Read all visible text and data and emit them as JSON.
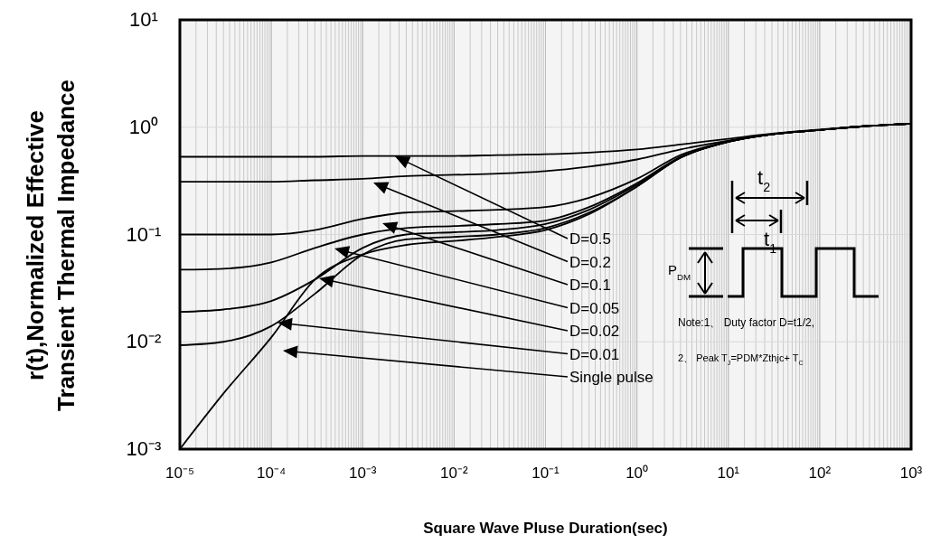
{
  "chart_data": {
    "type": "line",
    "xlabel": "Square Wave Pluse Duration(sec)",
    "ylabel": "r(t),Normalized Effective Transient Thermal Impedance",
    "log": "xy",
    "grid": true,
    "xlim": [
      1e-05,
      1000
    ],
    "ylim": [
      0.001,
      10
    ],
    "xticks": [
      {
        "value": 1e-05,
        "label": "10⁻⁵"
      },
      {
        "value": 0.0001,
        "label": "10⁻⁴"
      },
      {
        "value": 0.001,
        "label": "10⁻³"
      },
      {
        "value": 0.01,
        "label": "10⁻²"
      },
      {
        "value": 0.1,
        "label": "10⁻¹"
      },
      {
        "value": 1,
        "label": "10⁰"
      },
      {
        "value": 10,
        "label": "10¹"
      },
      {
        "value": 100,
        "label": "10²"
      },
      {
        "value": 1000,
        "label": "10³"
      }
    ],
    "yticks": [
      {
        "value": 0.001,
        "label": "10⁻³"
      },
      {
        "value": 0.01,
        "label": "10⁻²"
      },
      {
        "value": 0.1,
        "label": "10⁻¹"
      },
      {
        "value": 1,
        "label": "10⁰"
      },
      {
        "value": 10,
        "label": "10¹"
      }
    ],
    "x": [
      1e-05,
      3e-05,
      0.0001,
      0.0003,
      0.001,
      0.003,
      0.01,
      0.03,
      0.1,
      0.3,
      1,
      3,
      10,
      30,
      100,
      300,
      1000
    ],
    "series": [
      {
        "color": "#000000",
        "values": [
          0.53,
          0.53,
          0.53,
          0.53,
          0.54,
          0.54,
          0.54,
          0.55,
          0.56,
          0.58,
          0.62,
          0.69,
          0.78,
          0.87,
          0.95,
          1.02,
          1.08
        ]
      },
      {
        "color": "#000000",
        "values": [
          0.31,
          0.31,
          0.31,
          0.32,
          0.33,
          0.35,
          0.36,
          0.37,
          0.39,
          0.43,
          0.5,
          0.62,
          0.75,
          0.86,
          0.94,
          1.02,
          1.08
        ]
      },
      {
        "color": "#000000",
        "values": [
          0.1,
          0.1,
          0.1,
          0.11,
          0.14,
          0.16,
          0.165,
          0.17,
          0.18,
          0.22,
          0.33,
          0.55,
          0.74,
          0.86,
          0.94,
          1.02,
          1.08
        ]
      },
      {
        "color": "#000000",
        "values": [
          0.047,
          0.048,
          0.055,
          0.075,
          0.1,
          0.115,
          0.12,
          0.125,
          0.135,
          0.18,
          0.3,
          0.53,
          0.73,
          0.86,
          0.94,
          1.02,
          1.08
        ]
      },
      {
        "color": "#000000",
        "values": [
          0.019,
          0.02,
          0.024,
          0.038,
          0.075,
          0.1,
          0.105,
          0.11,
          0.125,
          0.17,
          0.29,
          0.52,
          0.73,
          0.86,
          0.94,
          1.02,
          1.08
        ]
      },
      {
        "color": "#000000",
        "values": [
          0.0093,
          0.01,
          0.014,
          0.028,
          0.065,
          0.09,
          0.095,
          0.1,
          0.115,
          0.16,
          0.28,
          0.52,
          0.73,
          0.86,
          0.94,
          1.02,
          1.08
        ]
      },
      {
        "color": "#000000",
        "values": [
          0.001,
          0.0033,
          0.011,
          0.038,
          0.065,
          0.08,
          0.087,
          0.095,
          0.11,
          0.155,
          0.28,
          0.52,
          0.73,
          0.86,
          0.94,
          1.02,
          1.08
        ]
      }
    ],
    "annotations": [
      "D=0.5",
      "D=0.2",
      "D=0.1",
      "D=0.05",
      "D=0.02",
      "D=0.01",
      "Single pulse",
      "t$_{2}$",
      "t$_{1}$",
      "P$_{DM}$",
      "Note:1、 Duty factor D=t1/2,",
      "2、 Peak T$_{J}$=PDM*Zthjc+ T$_{C}$"
    ]
  }
}
